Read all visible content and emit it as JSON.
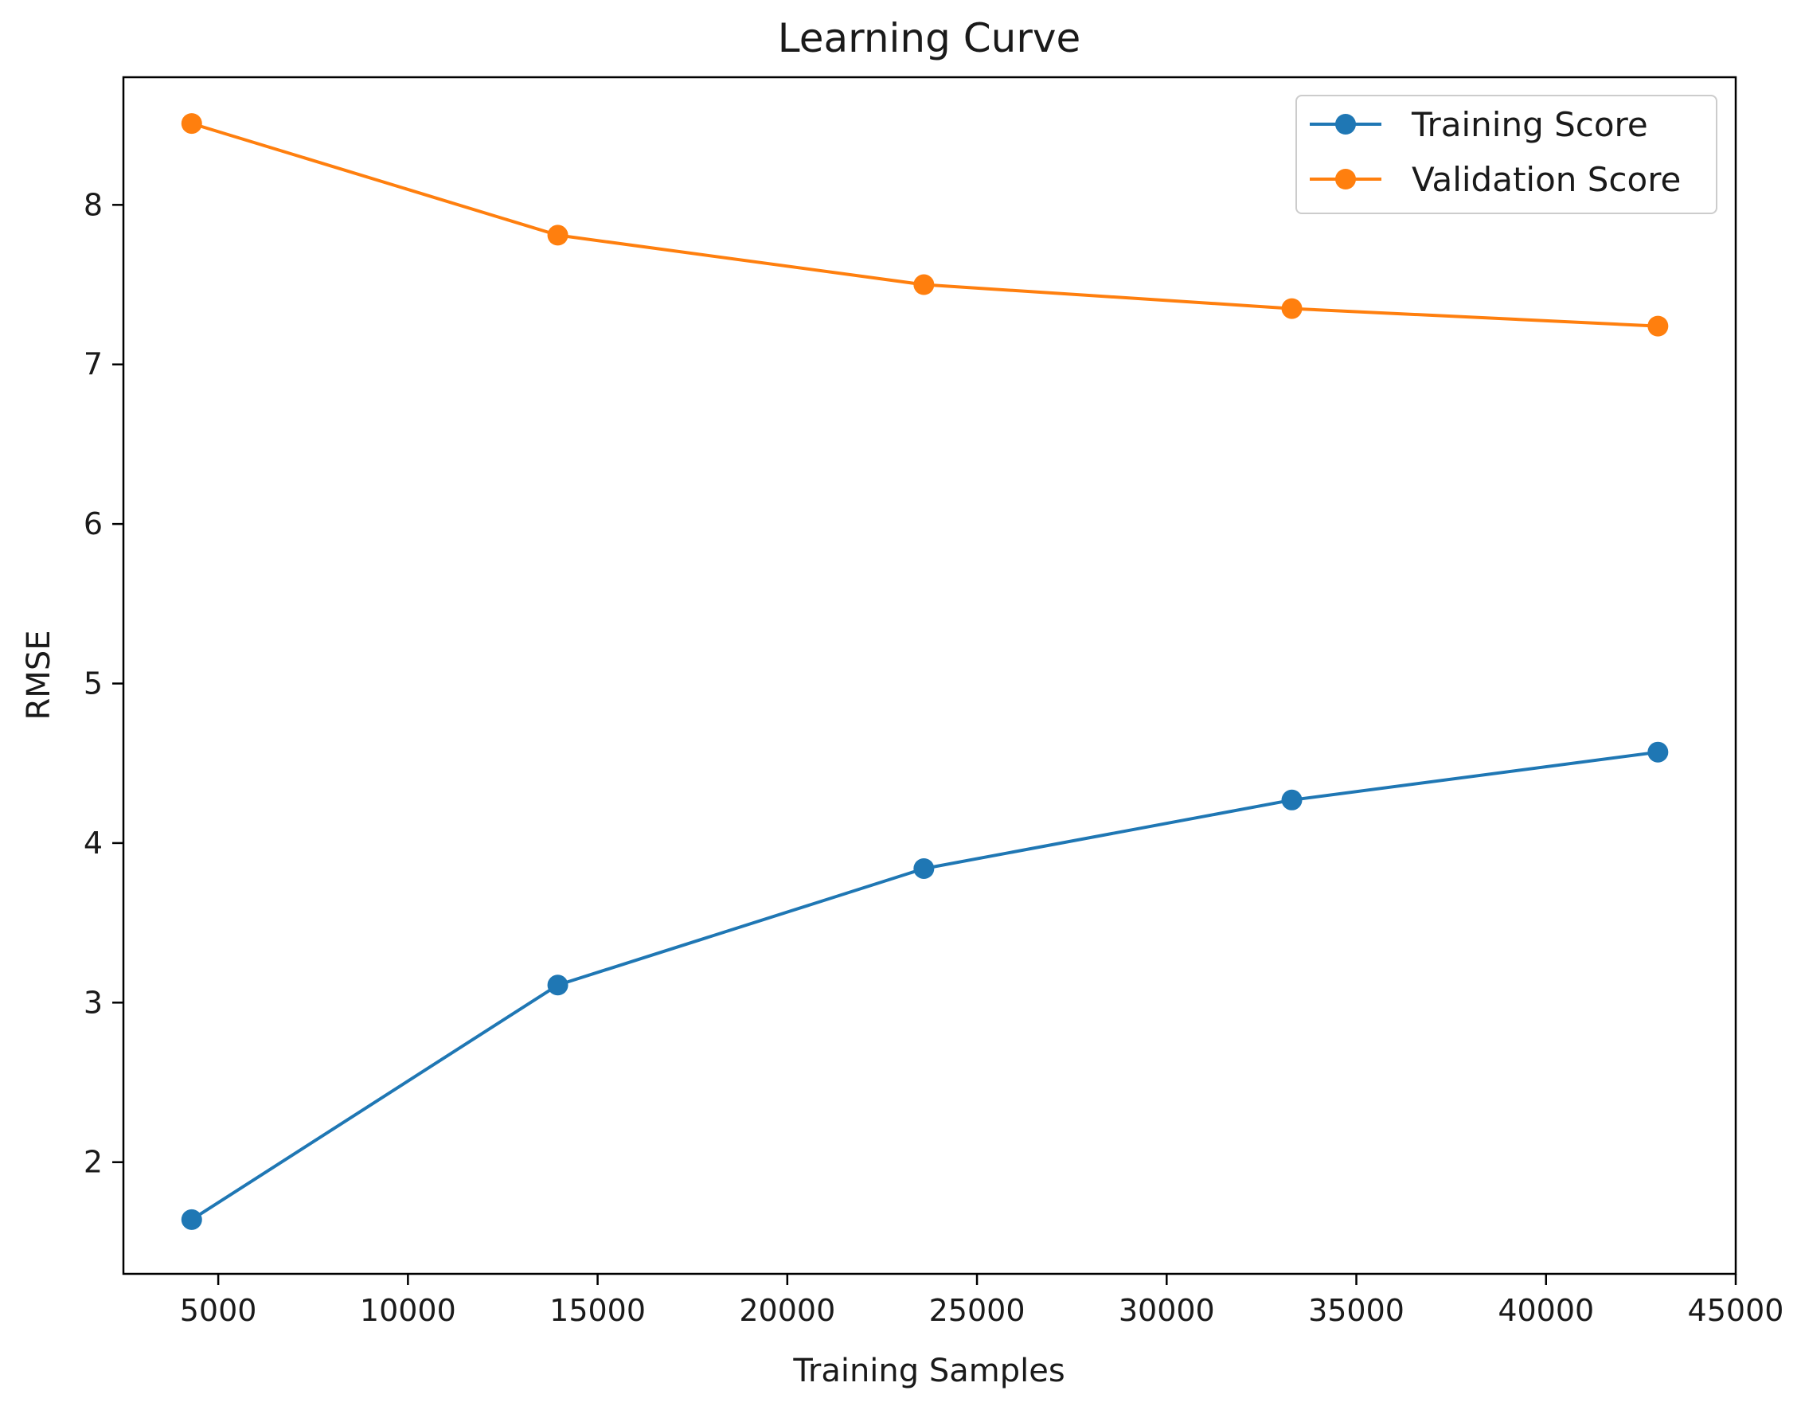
{
  "chart_data": {
    "type": "line",
    "title": "Learning Curve",
    "xlabel": "Training Samples",
    "ylabel": "RMSE",
    "xlim": [
      2500,
      45000
    ],
    "ylim": [
      1.3,
      8.8
    ],
    "xticks": [
      5000,
      10000,
      15000,
      20000,
      25000,
      30000,
      35000,
      40000,
      45000
    ],
    "yticks": [
      2,
      3,
      4,
      5,
      6,
      7,
      8
    ],
    "x": [
      4300,
      13950,
      23600,
      33300,
      42950
    ],
    "series": [
      {
        "name": "Training Score",
        "color": "#1f77b4",
        "values": [
          1.64,
          3.11,
          3.84,
          4.27,
          4.57
        ]
      },
      {
        "name": "Validation Score",
        "color": "#ff7f0e",
        "values": [
          8.51,
          7.81,
          7.5,
          7.35,
          7.24
        ]
      }
    ],
    "legend": "top-right",
    "grid": false
  }
}
